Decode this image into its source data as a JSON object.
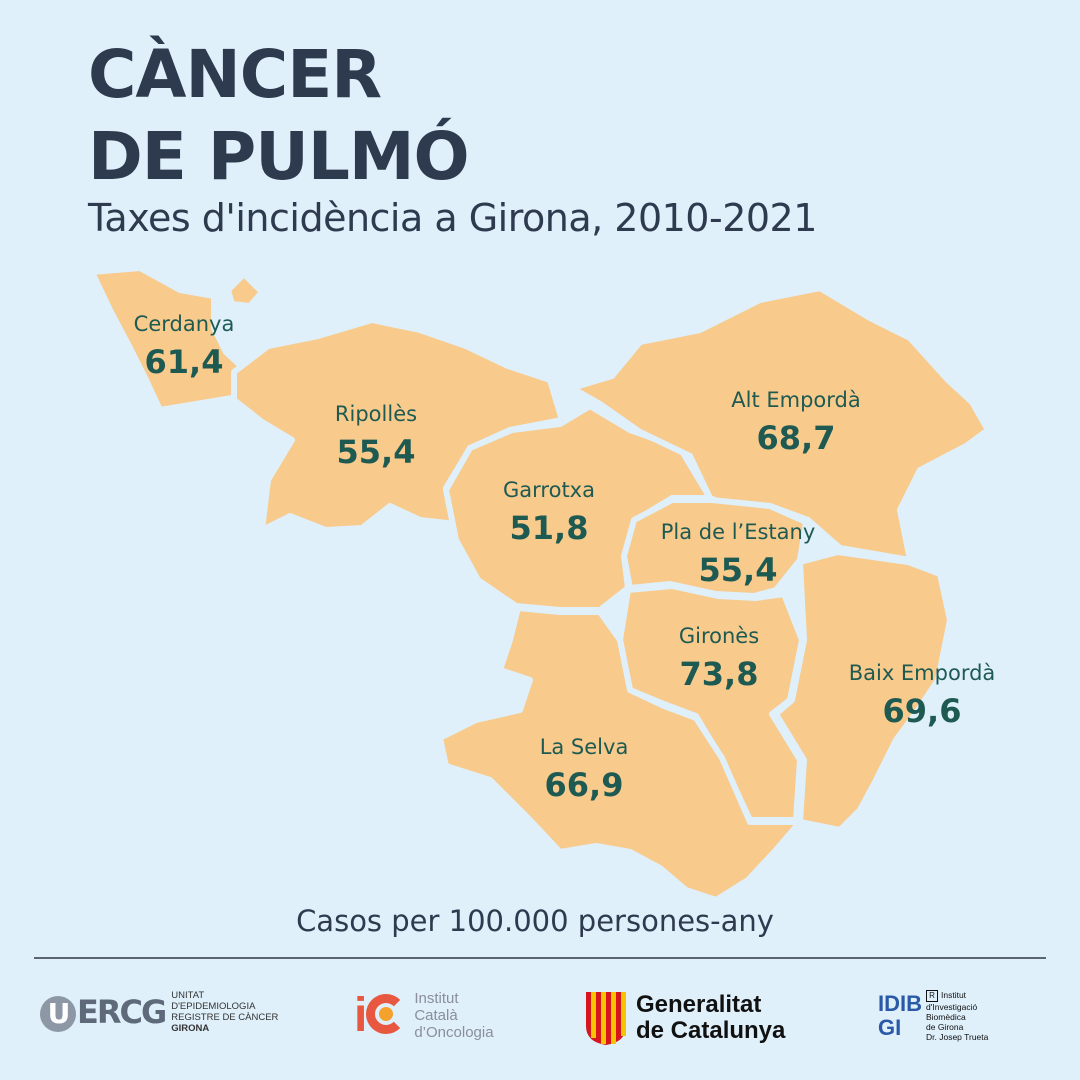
{
  "title_line1": "CÀNCER",
  "title_line2": "DE PULMÓ",
  "subtitle": "Taxes d'incidència a Girona, 2010-2021",
  "units": "Casos per 100.000 persones-any",
  "colors": {
    "background": "#dff0fb",
    "region": "#f8ca8c",
    "label": "#1e5a52",
    "title": "#2e3a4e"
  },
  "regions": [
    {
      "id": "cerdanya",
      "name": "Cerdanya",
      "value": "61,4"
    },
    {
      "id": "ripolles",
      "name": "Ripollès",
      "value": "55,4"
    },
    {
      "id": "garrotxa",
      "name": "Garrotxa",
      "value": "51,8"
    },
    {
      "id": "alt-emporda",
      "name": "Alt Empordà",
      "value": "68,7"
    },
    {
      "id": "pla-estany",
      "name": "Pla de l’Estany",
      "value": "55,4"
    },
    {
      "id": "girones",
      "name": "Gironès",
      "value": "73,8"
    },
    {
      "id": "baix-emporda",
      "name": "Baix Empordà",
      "value": "69,6"
    },
    {
      "id": "la-selva",
      "name": "La Selva",
      "value": "66,9"
    }
  ],
  "logos": {
    "uercg": {
      "mark": "UERCG",
      "lines": [
        "UNITAT",
        "D'EPIDEMIOLOGIA",
        "REGISTRE DE CÀNCER",
        "GIRONA"
      ]
    },
    "ico": {
      "mark": "iC",
      "lines": [
        "Institut",
        "Català",
        "d’Oncologia"
      ]
    },
    "generalitat": {
      "lines": [
        "Generalitat",
        "de Catalunya"
      ]
    },
    "idibgi": {
      "mark_top": "IDIB",
      "mark_bottom": "GI",
      "badge": "R",
      "lines": [
        "Institut",
        "d'Investigació",
        "Biomèdica",
        "de Girona",
        "Dr. Josep Trueta"
      ]
    }
  }
}
